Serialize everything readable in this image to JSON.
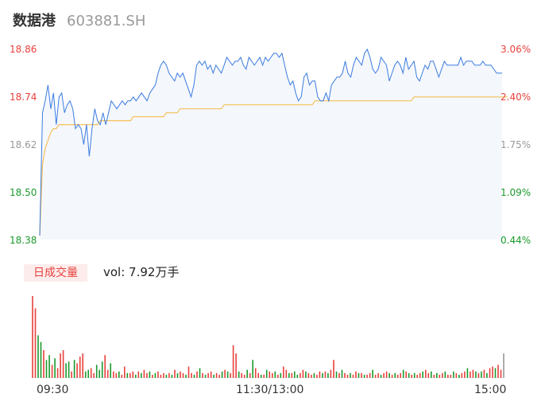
{
  "header": {
    "name": "数据港",
    "code": "603881.SH"
  },
  "colors": {
    "price": "#3a7be0",
    "avg": "#f5c15a",
    "fill": "#f4f7fc",
    "up": "#e8413c",
    "down": "#1a9a2c",
    "flat": "#999999"
  },
  "chart_data": [
    {
      "type": "line",
      "title": "",
      "y_ticks_left": [
        "18.86",
        "18.74",
        "18.62",
        "18.50",
        "18.38"
      ],
      "y_ticks_right": [
        "3.06%",
        "2.40%",
        "1.75%",
        "1.09%",
        "0.44%"
      ],
      "ylim": [
        18.38,
        18.86
      ],
      "x_ticks": [
        "09:30",
        "11:30/13:00",
        "15:00"
      ],
      "series": [
        {
          "values": [
            18.39,
            18.7,
            18.73,
            18.77,
            18.71,
            18.75,
            18.67,
            18.74,
            18.75,
            18.7,
            18.72,
            18.73,
            18.71,
            18.66,
            18.67,
            18.66,
            18.62,
            18.67,
            18.59,
            18.66,
            18.71,
            18.68,
            18.67,
            18.7,
            18.67,
            18.7,
            18.73,
            18.72,
            18.71,
            18.72,
            18.73,
            18.72,
            18.73,
            18.73,
            18.74,
            18.73,
            18.74,
            18.75,
            18.74,
            18.73,
            18.75,
            18.76,
            18.77,
            18.8,
            18.82,
            18.83,
            18.82,
            18.8,
            18.79,
            18.78,
            18.8,
            18.79,
            18.8,
            18.78,
            18.76,
            18.74,
            18.77,
            18.82,
            18.83,
            18.82,
            18.83,
            18.81,
            18.82,
            18.8,
            18.82,
            18.81,
            18.8,
            18.82,
            18.84,
            18.83,
            18.82,
            18.83,
            18.83,
            18.84,
            18.82,
            18.81,
            18.84,
            18.83,
            18.82,
            18.83,
            18.84,
            18.82,
            18.84,
            18.83,
            18.84,
            18.85,
            18.85,
            18.84,
            18.85,
            18.82,
            18.79,
            18.77,
            18.78,
            18.75,
            18.73,
            18.74,
            18.79,
            18.8,
            18.77,
            18.78,
            18.78,
            18.74,
            18.73,
            18.73,
            18.75,
            18.73,
            18.77,
            18.78,
            18.79,
            18.79,
            18.8,
            18.83,
            18.8,
            18.79,
            18.82,
            18.84,
            18.83,
            18.82,
            18.85,
            18.86,
            18.84,
            18.81,
            18.8,
            18.81,
            18.84,
            18.83,
            18.82,
            18.78,
            18.8,
            18.82,
            18.83,
            18.82,
            18.8,
            18.84,
            18.81,
            18.82,
            18.83,
            18.79,
            18.78,
            18.8,
            18.82,
            18.81,
            18.83,
            18.83,
            18.81,
            18.79,
            18.81,
            18.83,
            18.82,
            18.82,
            18.82,
            18.82,
            18.82,
            18.84,
            18.82,
            18.83,
            18.83,
            18.83,
            18.82,
            18.82,
            18.82,
            18.83,
            18.82,
            18.82,
            18.82,
            18.81,
            18.8,
            18.8,
            18.8
          ]
        },
        {
          "values": [
            18.39,
            18.57,
            18.61,
            18.63,
            18.65,
            18.66,
            18.66,
            18.67,
            18.67,
            18.67,
            18.67,
            18.67,
            18.67,
            18.67,
            18.67,
            18.67,
            18.67,
            18.67,
            18.67,
            18.67,
            18.67,
            18.67,
            18.68,
            18.68,
            18.68,
            18.68,
            18.68,
            18.68,
            18.68,
            18.68,
            18.68,
            18.68,
            18.68,
            18.68,
            18.69,
            18.69,
            18.69,
            18.69,
            18.69,
            18.69,
            18.69,
            18.69,
            18.69,
            18.69,
            18.69,
            18.69,
            18.7,
            18.7,
            18.7,
            18.7,
            18.7,
            18.71,
            18.71,
            18.71,
            18.71,
            18.71,
            18.71,
            18.71,
            18.71,
            18.71,
            18.71,
            18.71,
            18.71,
            18.71,
            18.71,
            18.71,
            18.71,
            18.72,
            18.72,
            18.72,
            18.72,
            18.72,
            18.72,
            18.72,
            18.72,
            18.72,
            18.72,
            18.72,
            18.72,
            18.72,
            18.72,
            18.72,
            18.72,
            18.72,
            18.72,
            18.72,
            18.72,
            18.72,
            18.72,
            18.72,
            18.72,
            18.72,
            18.72,
            18.72,
            18.72,
            18.72,
            18.72,
            18.72,
            18.72,
            18.72,
            18.73,
            18.73,
            18.73,
            18.73,
            18.73,
            18.73,
            18.73,
            18.73,
            18.73,
            18.73,
            18.73,
            18.73,
            18.73,
            18.73,
            18.73,
            18.73,
            18.73,
            18.73,
            18.73,
            18.73,
            18.73,
            18.73,
            18.73,
            18.73,
            18.73,
            18.73,
            18.73,
            18.73,
            18.73,
            18.73,
            18.73,
            18.73,
            18.73,
            18.73,
            18.73,
            18.73,
            18.74,
            18.74,
            18.74,
            18.74,
            18.74,
            18.74,
            18.74,
            18.74,
            18.74,
            18.74,
            18.74,
            18.74,
            18.74,
            18.74,
            18.74,
            18.74,
            18.74,
            18.74,
            18.74,
            18.74,
            18.74,
            18.74,
            18.74,
            18.74,
            18.74,
            18.74,
            18.74,
            18.74,
            18.74,
            18.74,
            18.74,
            18.74,
            18.74,
            18.74,
            18.74
          ]
        }
      ]
    },
    {
      "type": "bar",
      "title": "日成交量",
      "label": "vol: 7.92万手",
      "values": [
        1.0,
        0.85,
        0.52,
        0.44,
        0.34,
        0.22,
        0.28,
        0.16,
        0.24,
        0.12,
        0.3,
        0.34,
        0.18,
        0.2,
        0.08,
        0.22,
        0.18,
        0.26,
        0.3,
        0.08,
        0.1,
        0.12,
        0.06,
        0.16,
        0.1,
        0.2,
        0.28,
        0.1,
        0.18,
        0.08,
        0.06,
        0.08,
        0.04,
        0.14,
        0.06,
        0.06,
        0.08,
        0.04,
        0.08,
        0.06,
        0.1,
        0.06,
        0.08,
        0.04,
        0.06,
        0.08,
        0.04,
        0.06,
        0.04,
        0.06,
        0.04,
        0.1,
        0.06,
        0.08,
        0.06,
        0.04,
        0.14,
        0.06,
        0.04,
        0.08,
        0.12,
        0.06,
        0.04,
        0.06,
        0.08,
        0.04,
        0.06,
        0.04,
        0.08,
        0.1,
        0.08,
        0.06,
        0.4,
        0.3,
        0.08,
        0.06,
        0.04,
        0.1,
        0.06,
        0.22,
        0.12,
        0.06,
        0.04,
        0.04,
        0.1,
        0.08,
        0.06,
        0.08,
        0.04,
        0.06,
        0.14,
        0.1,
        0.06,
        0.06,
        0.08,
        0.04,
        0.06,
        0.1,
        0.08,
        0.06,
        0.04,
        0.06,
        0.04,
        0.08,
        0.06,
        0.08,
        0.06,
        0.1,
        0.22,
        0.08,
        0.06,
        0.1,
        0.06,
        0.04,
        0.06,
        0.04,
        0.08,
        0.06,
        0.06,
        0.04,
        0.04,
        0.06,
        0.1,
        0.04,
        0.06,
        0.04,
        0.06,
        0.08,
        0.06,
        0.04,
        0.06,
        0.04,
        0.06,
        0.1,
        0.08,
        0.06,
        0.04,
        0.06,
        0.04,
        0.06,
        0.08,
        0.1,
        0.06,
        0.08,
        0.04,
        0.06,
        0.04,
        0.06,
        0.08,
        0.04,
        0.04,
        0.08,
        0.06,
        0.04,
        0.06,
        0.08,
        0.12,
        0.08,
        0.1,
        0.08,
        0.06,
        0.08,
        0.1,
        0.06,
        0.12,
        0.14,
        0.12,
        0.16,
        0.1,
        0.3
      ],
      "directions": [
        "up",
        "up",
        "down",
        "down",
        "up",
        "down",
        "down",
        "up",
        "down",
        "up",
        "up",
        "up",
        "down",
        "down",
        "up",
        "down",
        "up",
        "up",
        "up",
        "down",
        "down",
        "up",
        "up",
        "down",
        "down",
        "down",
        "up",
        "up",
        "down",
        "up",
        "up",
        "down",
        "up",
        "up",
        "down",
        "up",
        "up",
        "down",
        "up",
        "down",
        "up",
        "up",
        "down",
        "up",
        "down",
        "up",
        "up",
        "up",
        "down",
        "up",
        "down",
        "up",
        "down",
        "up",
        "up",
        "down",
        "up",
        "up",
        "down",
        "up",
        "down",
        "up",
        "down",
        "up",
        "up",
        "down",
        "up",
        "up",
        "down",
        "up",
        "down",
        "up",
        "up",
        "up",
        "down",
        "up",
        "up",
        "down",
        "up",
        "down",
        "up",
        "up",
        "down",
        "up",
        "down",
        "up",
        "up",
        "down",
        "up",
        "down",
        "up",
        "up",
        "down",
        "up",
        "down",
        "down",
        "up",
        "up",
        "down",
        "up",
        "up",
        "down",
        "up",
        "up",
        "down",
        "up",
        "down",
        "up",
        "up",
        "down",
        "up",
        "down",
        "up",
        "up",
        "down",
        "up",
        "up",
        "down",
        "up",
        "down",
        "up",
        "up",
        "down",
        "up",
        "up",
        "down",
        "up",
        "up",
        "down",
        "up",
        "down",
        "up",
        "up",
        "down",
        "up",
        "down",
        "up",
        "down",
        "up",
        "up",
        "down",
        "up",
        "up",
        "down",
        "up",
        "down",
        "up",
        "up",
        "down",
        "up",
        "up",
        "down",
        "up",
        "down",
        "up",
        "up",
        "down",
        "up",
        "up",
        "down",
        "up",
        "down",
        "up",
        "down",
        "up",
        "up",
        "down",
        "up",
        "up",
        "flat"
      ]
    }
  ]
}
